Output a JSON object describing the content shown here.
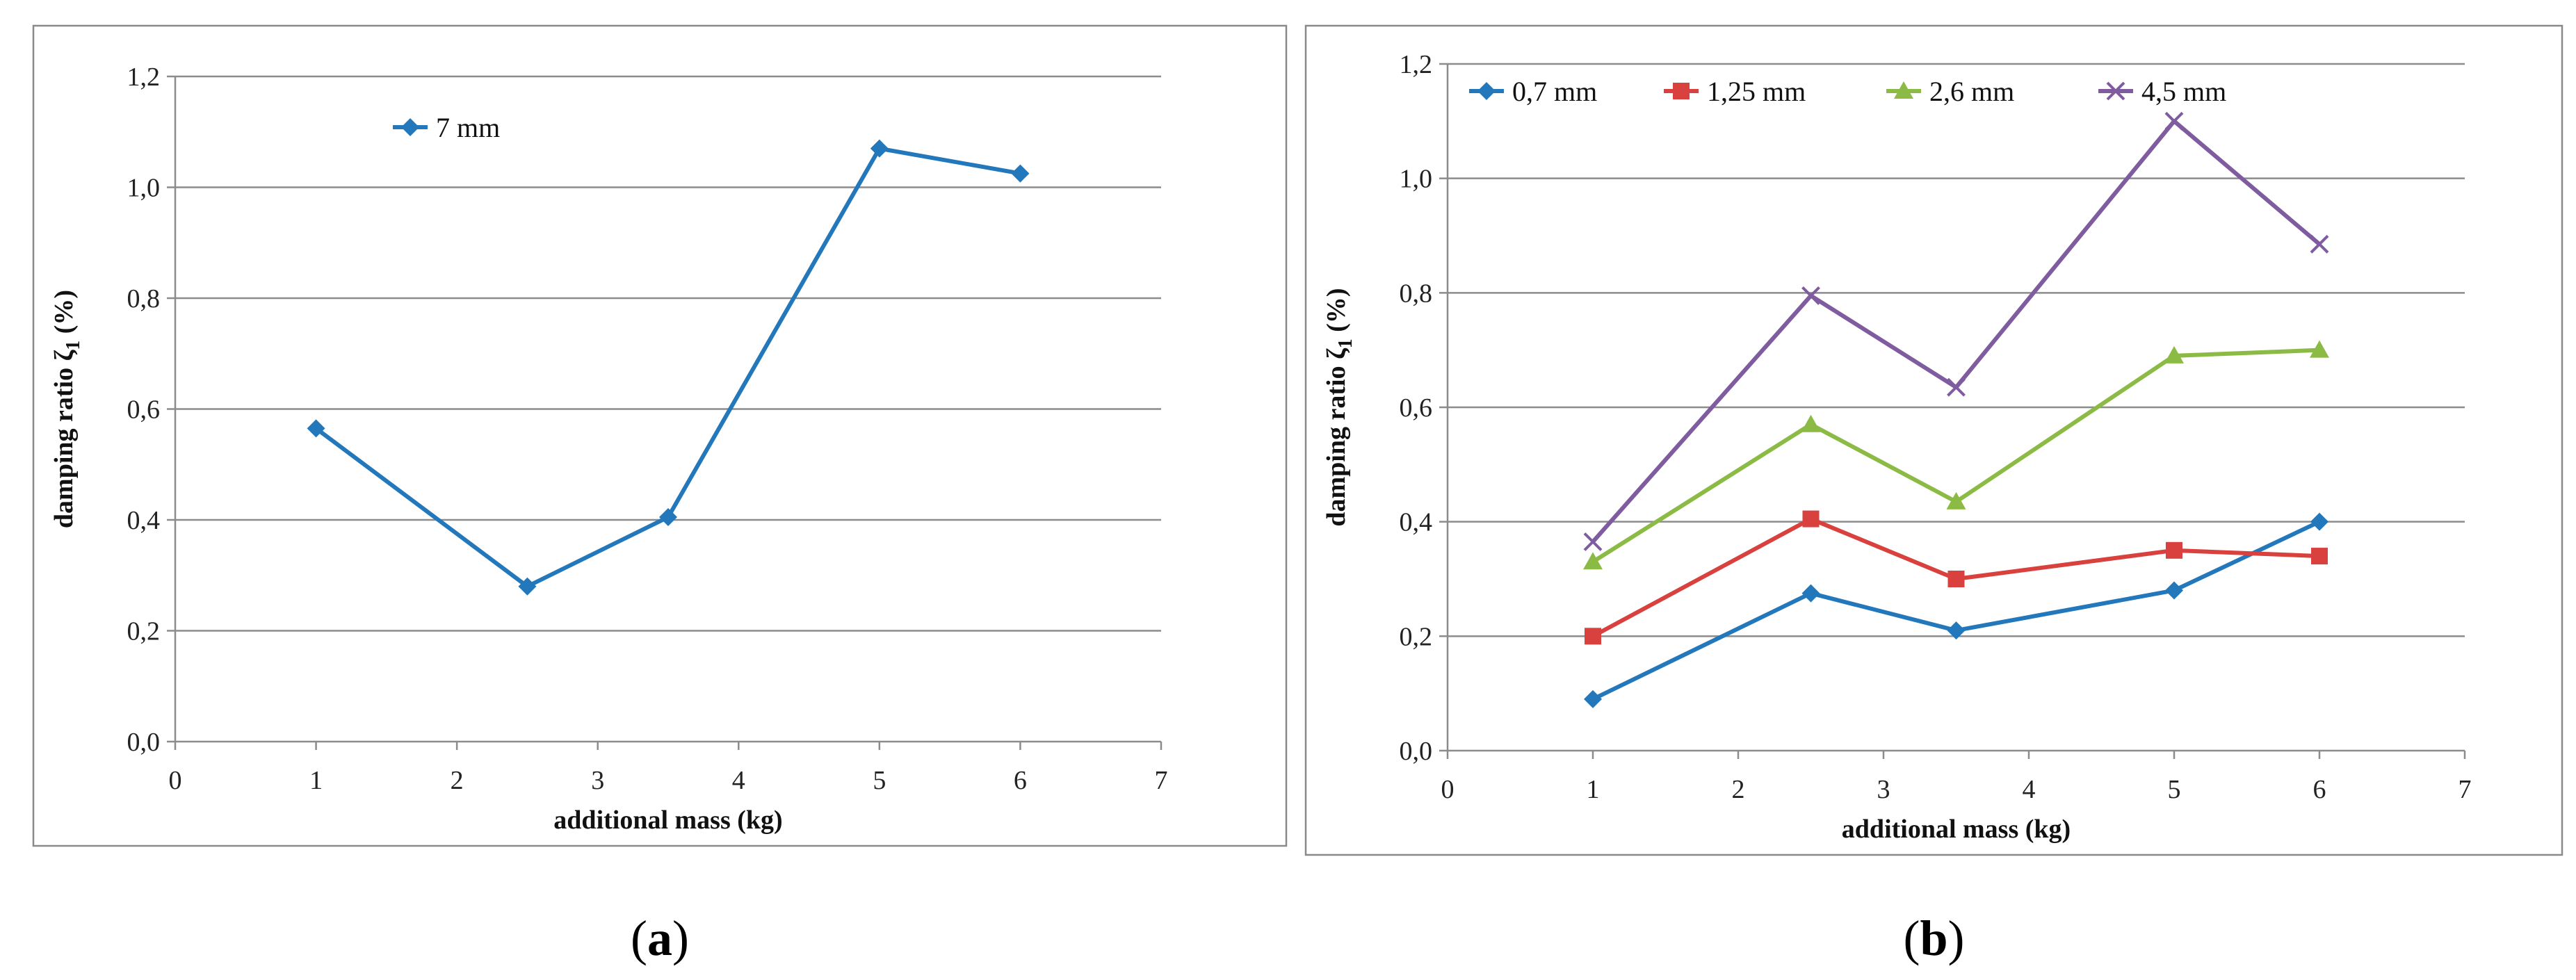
{
  "chart_data": [
    {
      "type": "line",
      "panel_label": "(a)",
      "panel_letter": "a",
      "xlabel": "additional mass (kg)",
      "ylabel_text": "damping ratio ζ",
      "ylabel_sub": "1",
      "ylabel_suffix": " (%)",
      "xlim": [
        0,
        7
      ],
      "ylim": [
        0,
        1.2
      ],
      "xticks": [
        "0",
        "1",
        "2",
        "3",
        "4",
        "5",
        "6",
        "7"
      ],
      "yticks": [
        "0,0",
        "0,2",
        "0,4",
        "0,6",
        "0,8",
        "1,0",
        "1,2"
      ],
      "grid": "horizontal",
      "legend_position": "top-left",
      "series": [
        {
          "name": "7 mm",
          "color": "#2278bb",
          "marker": "diamond",
          "x": [
            1,
            2.5,
            3.5,
            5,
            6
          ],
          "y": [
            0.565,
            0.28,
            0.405,
            1.07,
            1.025
          ]
        }
      ]
    },
    {
      "type": "line",
      "panel_label": "(b)",
      "panel_letter": "b",
      "xlabel": "additional mass (kg)",
      "ylabel_text": "damping ratio ζ",
      "ylabel_sub": "1",
      "ylabel_suffix": " (%)",
      "xlim": [
        0,
        7
      ],
      "ylim": [
        0,
        1.2
      ],
      "xticks": [
        "0",
        "1",
        "2",
        "3",
        "4",
        "5",
        "6",
        "7"
      ],
      "yticks": [
        "0,0",
        "0,2",
        "0,4",
        "0,6",
        "0,8",
        "1,0",
        "1,2"
      ],
      "grid": "horizontal",
      "legend_position": "top",
      "series": [
        {
          "name": "0,7 mm",
          "color": "#2278bb",
          "marker": "diamond",
          "x": [
            1,
            2.5,
            3.5,
            5,
            6
          ],
          "y": [
            0.09,
            0.275,
            0.21,
            0.28,
            0.4
          ]
        },
        {
          "name": "1,25 mm",
          "color": "#d9413e",
          "marker": "square",
          "x": [
            1,
            2.5,
            3.5,
            5,
            6
          ],
          "y": [
            0.2,
            0.405,
            0.3,
            0.35,
            0.34
          ]
        },
        {
          "name": "2,6 mm",
          "color": "#8cbb45",
          "marker": "triangle",
          "x": [
            1,
            2.5,
            3.5,
            5,
            6
          ],
          "y": [
            0.33,
            0.57,
            0.435,
            0.69,
            0.7
          ]
        },
        {
          "name": "4,5 mm",
          "color": "#7f5b9f",
          "marker": "x",
          "x": [
            1,
            2.5,
            3.5,
            5,
            6
          ],
          "y": [
            0.365,
            0.795,
            0.635,
            1.1,
            0.885
          ]
        }
      ]
    }
  ]
}
